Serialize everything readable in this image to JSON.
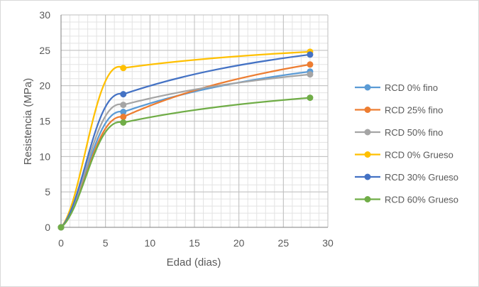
{
  "chart_data": {
    "type": "line",
    "title": "",
    "xlabel": "Edad (dias)",
    "ylabel": "Resistencia (MPa)",
    "xlim": [
      0,
      30
    ],
    "ylim": [
      0,
      30
    ],
    "xticks": [
      "0",
      "5",
      "10",
      "15",
      "20",
      "25",
      "30"
    ],
    "yticks": [
      "0",
      "5",
      "10",
      "15",
      "20",
      "25",
      "30"
    ],
    "grid": true,
    "legend_position": "right",
    "series": [
      {
        "name": "RCD 0% fino",
        "color": "#5B9BD5",
        "x": [
          0,
          7,
          28
        ],
        "y": [
          0,
          16.3,
          22.0
        ]
      },
      {
        "name": "RCD 25% fino",
        "color": "#ED7D31",
        "x": [
          0,
          7,
          28
        ],
        "y": [
          0,
          15.6,
          23.0
        ]
      },
      {
        "name": "RCD 50% fino",
        "color": "#A5A5A5",
        "x": [
          0,
          7,
          28
        ],
        "y": [
          0,
          17.3,
          21.6
        ]
      },
      {
        "name": "RCD 0% Grueso",
        "color": "#FFC000",
        "x": [
          0,
          7,
          28
        ],
        "y": [
          0,
          22.5,
          24.8
        ]
      },
      {
        "name": "RCD 30% Grueso",
        "color": "#4472C4",
        "x": [
          0,
          7,
          28
        ],
        "y": [
          0,
          18.8,
          24.4
        ]
      },
      {
        "name": "RCD 60% Grueso",
        "color": "#70AD47",
        "x": [
          0,
          7,
          28
        ],
        "y": [
          0,
          14.8,
          18.3
        ]
      }
    ]
  }
}
